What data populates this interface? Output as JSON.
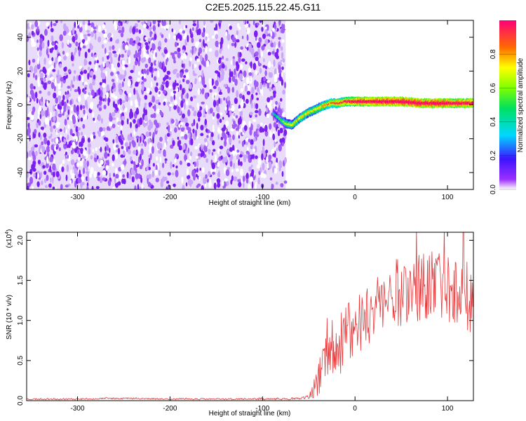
{
  "title": "C2E5.2025.115.22.45.G11",
  "chart_data": [
    {
      "type": "heatmap",
      "xlabel": "Height of straight line (km)",
      "ylabel": "Frequency (Hz)",
      "xlim": [
        -355,
        128
      ],
      "ylim": [
        -50,
        50
      ],
      "x_ticks": [
        -300,
        -200,
        -100,
        0,
        100
      ],
      "y_ticks": [
        -40,
        -20,
        0,
        20,
        40
      ],
      "colorbar": {
        "label": "Normalized spectral amplitude",
        "range": [
          0,
          1
        ],
        "ticks": [
          0.0,
          0.2,
          0.4,
          0.6,
          0.8
        ]
      },
      "noise_region_x": [
        -355,
        -75
      ],
      "trace": {
        "x": [
          -88,
          -80,
          -75,
          -68,
          -62,
          -55,
          -48,
          -40,
          -32,
          -25,
          -18,
          -10,
          -3,
          5,
          15,
          30,
          50,
          70,
          90,
          110,
          128
        ],
        "y": [
          -5,
          -9,
          -11,
          -12,
          -9,
          -6,
          -4,
          -2,
          0,
          1,
          1,
          2,
          2,
          2,
          2,
          2,
          2,
          1,
          1,
          1,
          1
        ],
        "amplitude": [
          0.25,
          0.4,
          0.5,
          0.55,
          0.6,
          0.6,
          0.55,
          0.6,
          0.65,
          0.7,
          0.75,
          0.8,
          0.85,
          0.9,
          0.9,
          0.95,
          0.95,
          0.95,
          0.95,
          0.9,
          0.9
        ]
      }
    },
    {
      "type": "line",
      "xlabel": "Height of straight line (km)",
      "ylabel": "SNR (10 * v/v)",
      "y_multiplier": "(x10",
      "y_multiplier_exp": "4",
      "y_multiplier_close": ")",
      "xlim": [
        -355,
        128
      ],
      "ylim": [
        0,
        2.1
      ],
      "x_ticks": [
        -300,
        -200,
        -100,
        0,
        100
      ],
      "y_ticks": [
        0.0,
        0.5,
        1.0,
        1.5,
        2.0
      ],
      "series": [
        {
          "color": "#e8383a",
          "x": [
            -355,
            -300,
            -250,
            -200,
            -150,
            -100,
            -70,
            -55,
            -50,
            -45,
            -40,
            -35,
            -30,
            -25,
            -20,
            -15,
            -10,
            -5,
            0,
            5,
            10,
            20,
            30,
            40,
            50,
            60,
            70,
            80,
            90,
            100,
            110,
            120,
            125,
            128
          ],
          "y": [
            0.02,
            0.02,
            0.03,
            0.02,
            0.02,
            0.02,
            0.02,
            0.03,
            0.05,
            0.1,
            0.25,
            0.4,
            0.55,
            0.62,
            0.7,
            0.75,
            0.78,
            0.85,
            0.9,
            1.0,
            1.05,
            1.15,
            1.25,
            1.3,
            1.38,
            1.4,
            1.42,
            1.42,
            1.42,
            1.42,
            1.42,
            1.4,
            1.15,
            0.85
          ],
          "noise": [
            0.01,
            0.01,
            0.01,
            0.01,
            0.01,
            0.01,
            0.01,
            0.02,
            0.03,
            0.1,
            0.22,
            0.3,
            0.35,
            0.38,
            0.4,
            0.42,
            0.42,
            0.42,
            0.42,
            0.42,
            0.45,
            0.45,
            0.45,
            0.45,
            0.45,
            0.45,
            0.45,
            0.45,
            0.45,
            0.45,
            0.45,
            0.45,
            0.45,
            0.45
          ]
        }
      ]
    }
  ]
}
